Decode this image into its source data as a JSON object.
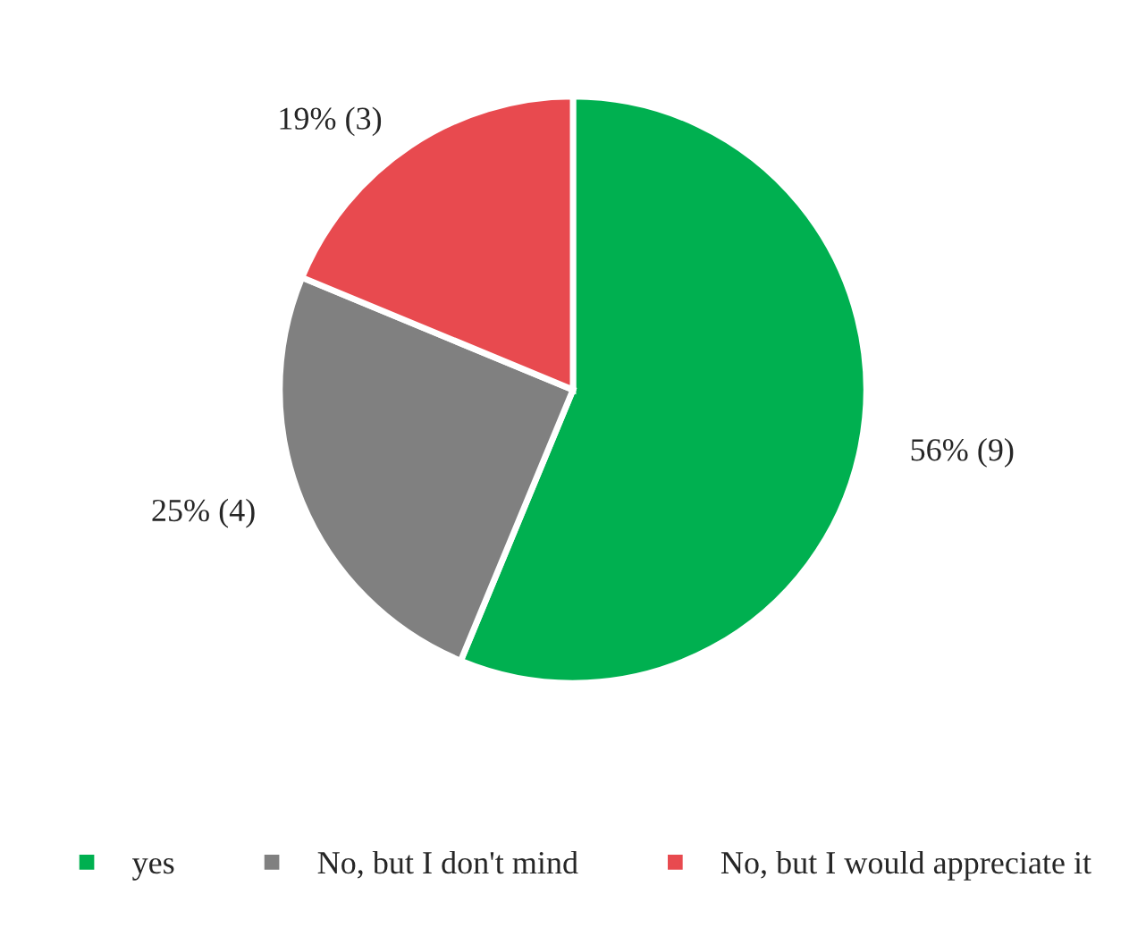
{
  "chart_data": {
    "type": "pie",
    "categories": [
      "yes",
      "No, but I don't mind",
      "No, but I would appreciate it"
    ],
    "values": [
      9,
      4,
      3
    ],
    "value_labels": [
      "56% (9)",
      "25% (4)",
      "19% (3)"
    ],
    "colors": [
      "#00b050",
      "#808080",
      "#e84a4f"
    ],
    "legend": "bottom"
  }
}
